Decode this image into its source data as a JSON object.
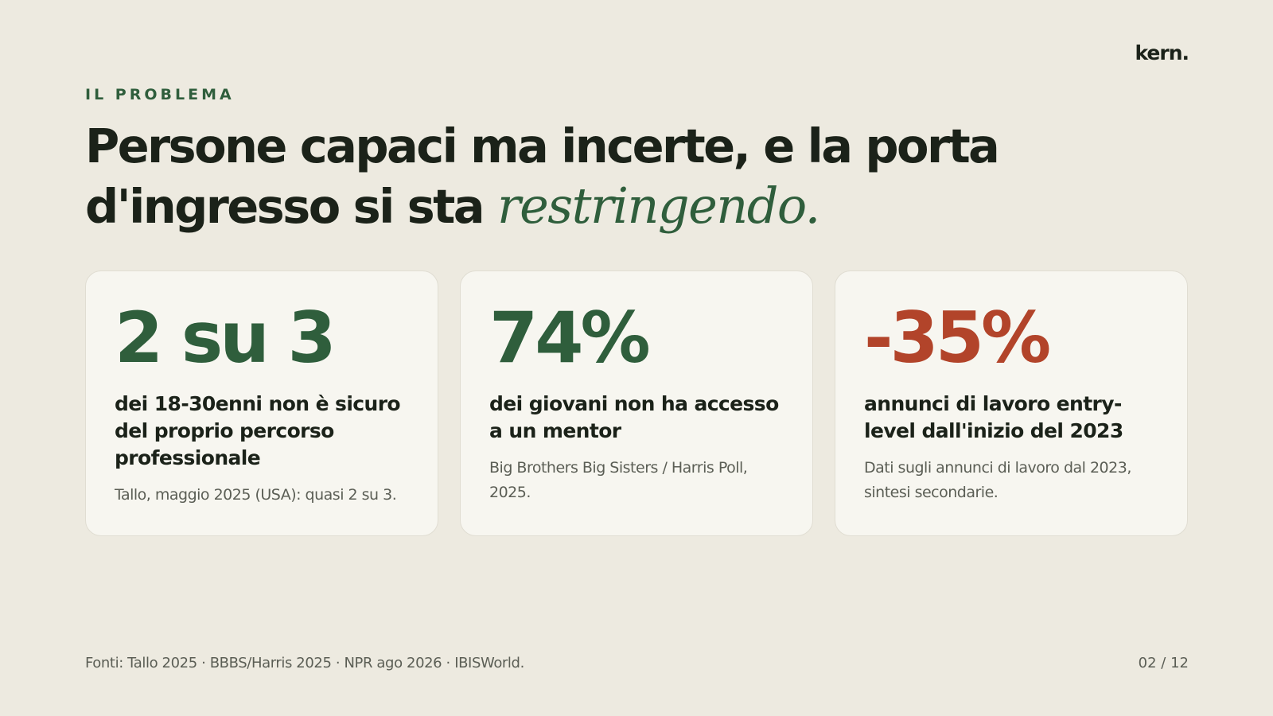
{
  "brand": {
    "logo_text": "kern."
  },
  "header": {
    "eyebrow": "IL PROBLEMA",
    "headline_main": "Persone capaci ma incerte, e la porta d'ingresso si sta ",
    "headline_accent": "restringendo."
  },
  "cards": [
    {
      "stat": "2 su 3",
      "description": "dei 18-30enni non è sicuro del proprio percorso professionale",
      "source": "Tallo, maggio 2025 (USA): quasi 2 su 3."
    },
    {
      "stat": "74%",
      "description": "dei giovani non ha accesso a un mentor",
      "source": "Big Brothers Big Sisters / Harris Poll, 2025."
    },
    {
      "stat": "-35%",
      "description": "annunci di lavoro entry-level dall'inizio del 2023",
      "source": "Dati sugli annunci di lavoro dal 2023, sintesi secondarie."
    }
  ],
  "footer": {
    "sources": "Fonti: Tallo 2025 · BBBS/Harris 2025 · NPR ago 2026 · IBISWorld.",
    "page_indicator": "02 / 12"
  },
  "colors": {
    "background": "#edeae0",
    "card_background": "#f7f6f0",
    "accent_green": "#2f5e3c",
    "accent_red": "#b2442a",
    "text_dark": "#1b2219",
    "text_muted": "#5b5e55"
  }
}
